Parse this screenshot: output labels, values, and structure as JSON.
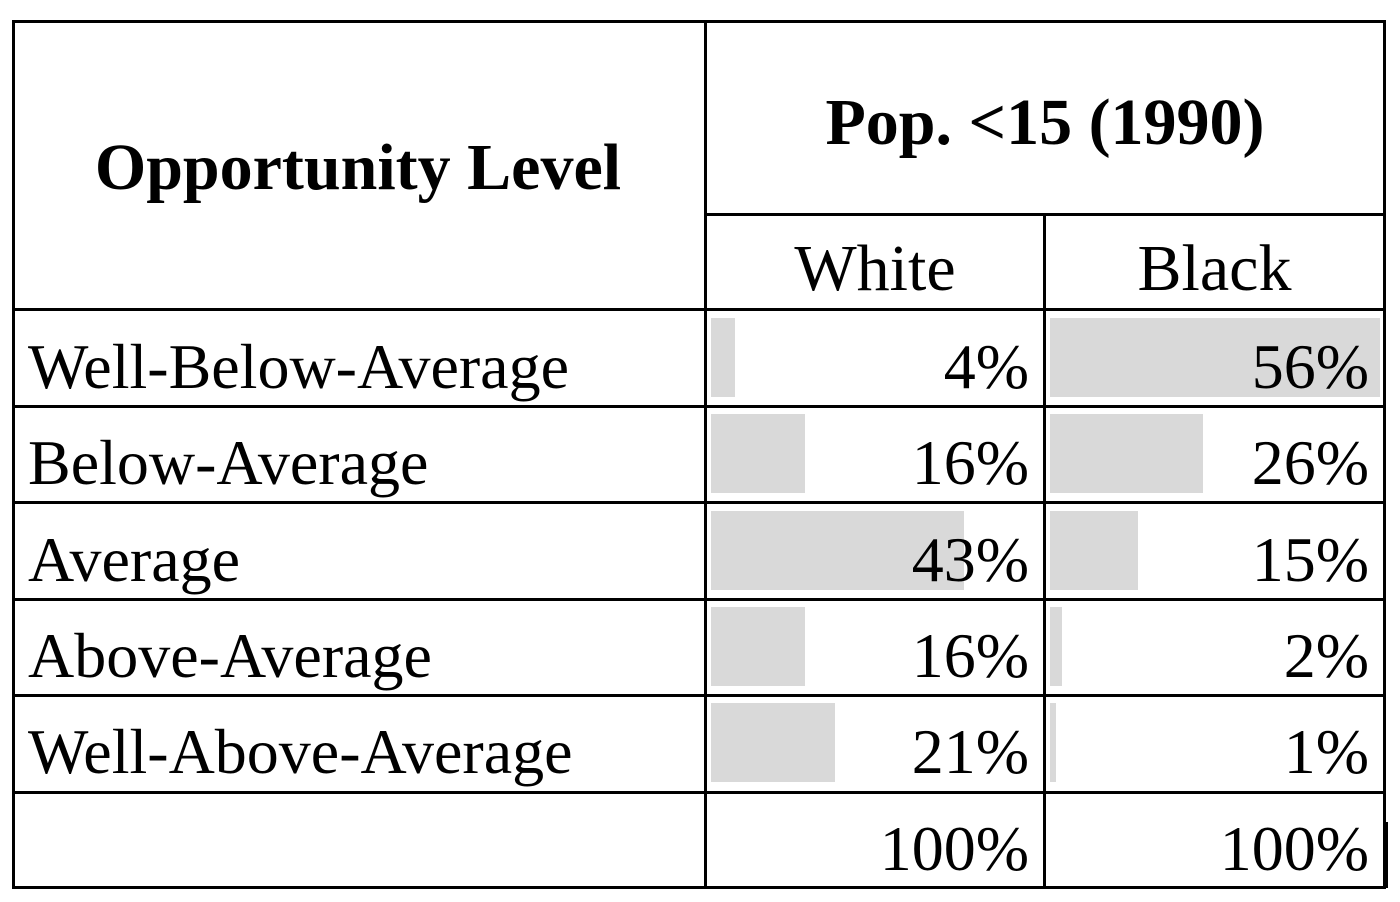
{
  "chart_data": {
    "type": "table",
    "header": {
      "row_label_header": "Opportunity Level",
      "group_header": "Pop. <15 (1990)",
      "columns": [
        "White",
        "Black"
      ]
    },
    "rows": [
      {
        "label": "Well-Below-Average",
        "values": [
          4,
          56
        ],
        "display": [
          "4%",
          "56%"
        ]
      },
      {
        "label": "Below-Average",
        "values": [
          16,
          26
        ],
        "display": [
          "16%",
          "26%"
        ]
      },
      {
        "label": "Average",
        "values": [
          43,
          15
        ],
        "display": [
          "43%",
          "15%"
        ]
      },
      {
        "label": "Above-Average",
        "values": [
          16,
          2
        ],
        "display": [
          "16%",
          "2%"
        ]
      },
      {
        "label": "Well-Above-Average",
        "values": [
          21,
          1
        ],
        "display": [
          "21%",
          "1%"
        ]
      }
    ],
    "totals": {
      "label": "",
      "display": [
        "100%",
        "100%"
      ]
    },
    "bar_scale_max": 56,
    "bar_color": "#d9d9d9"
  }
}
